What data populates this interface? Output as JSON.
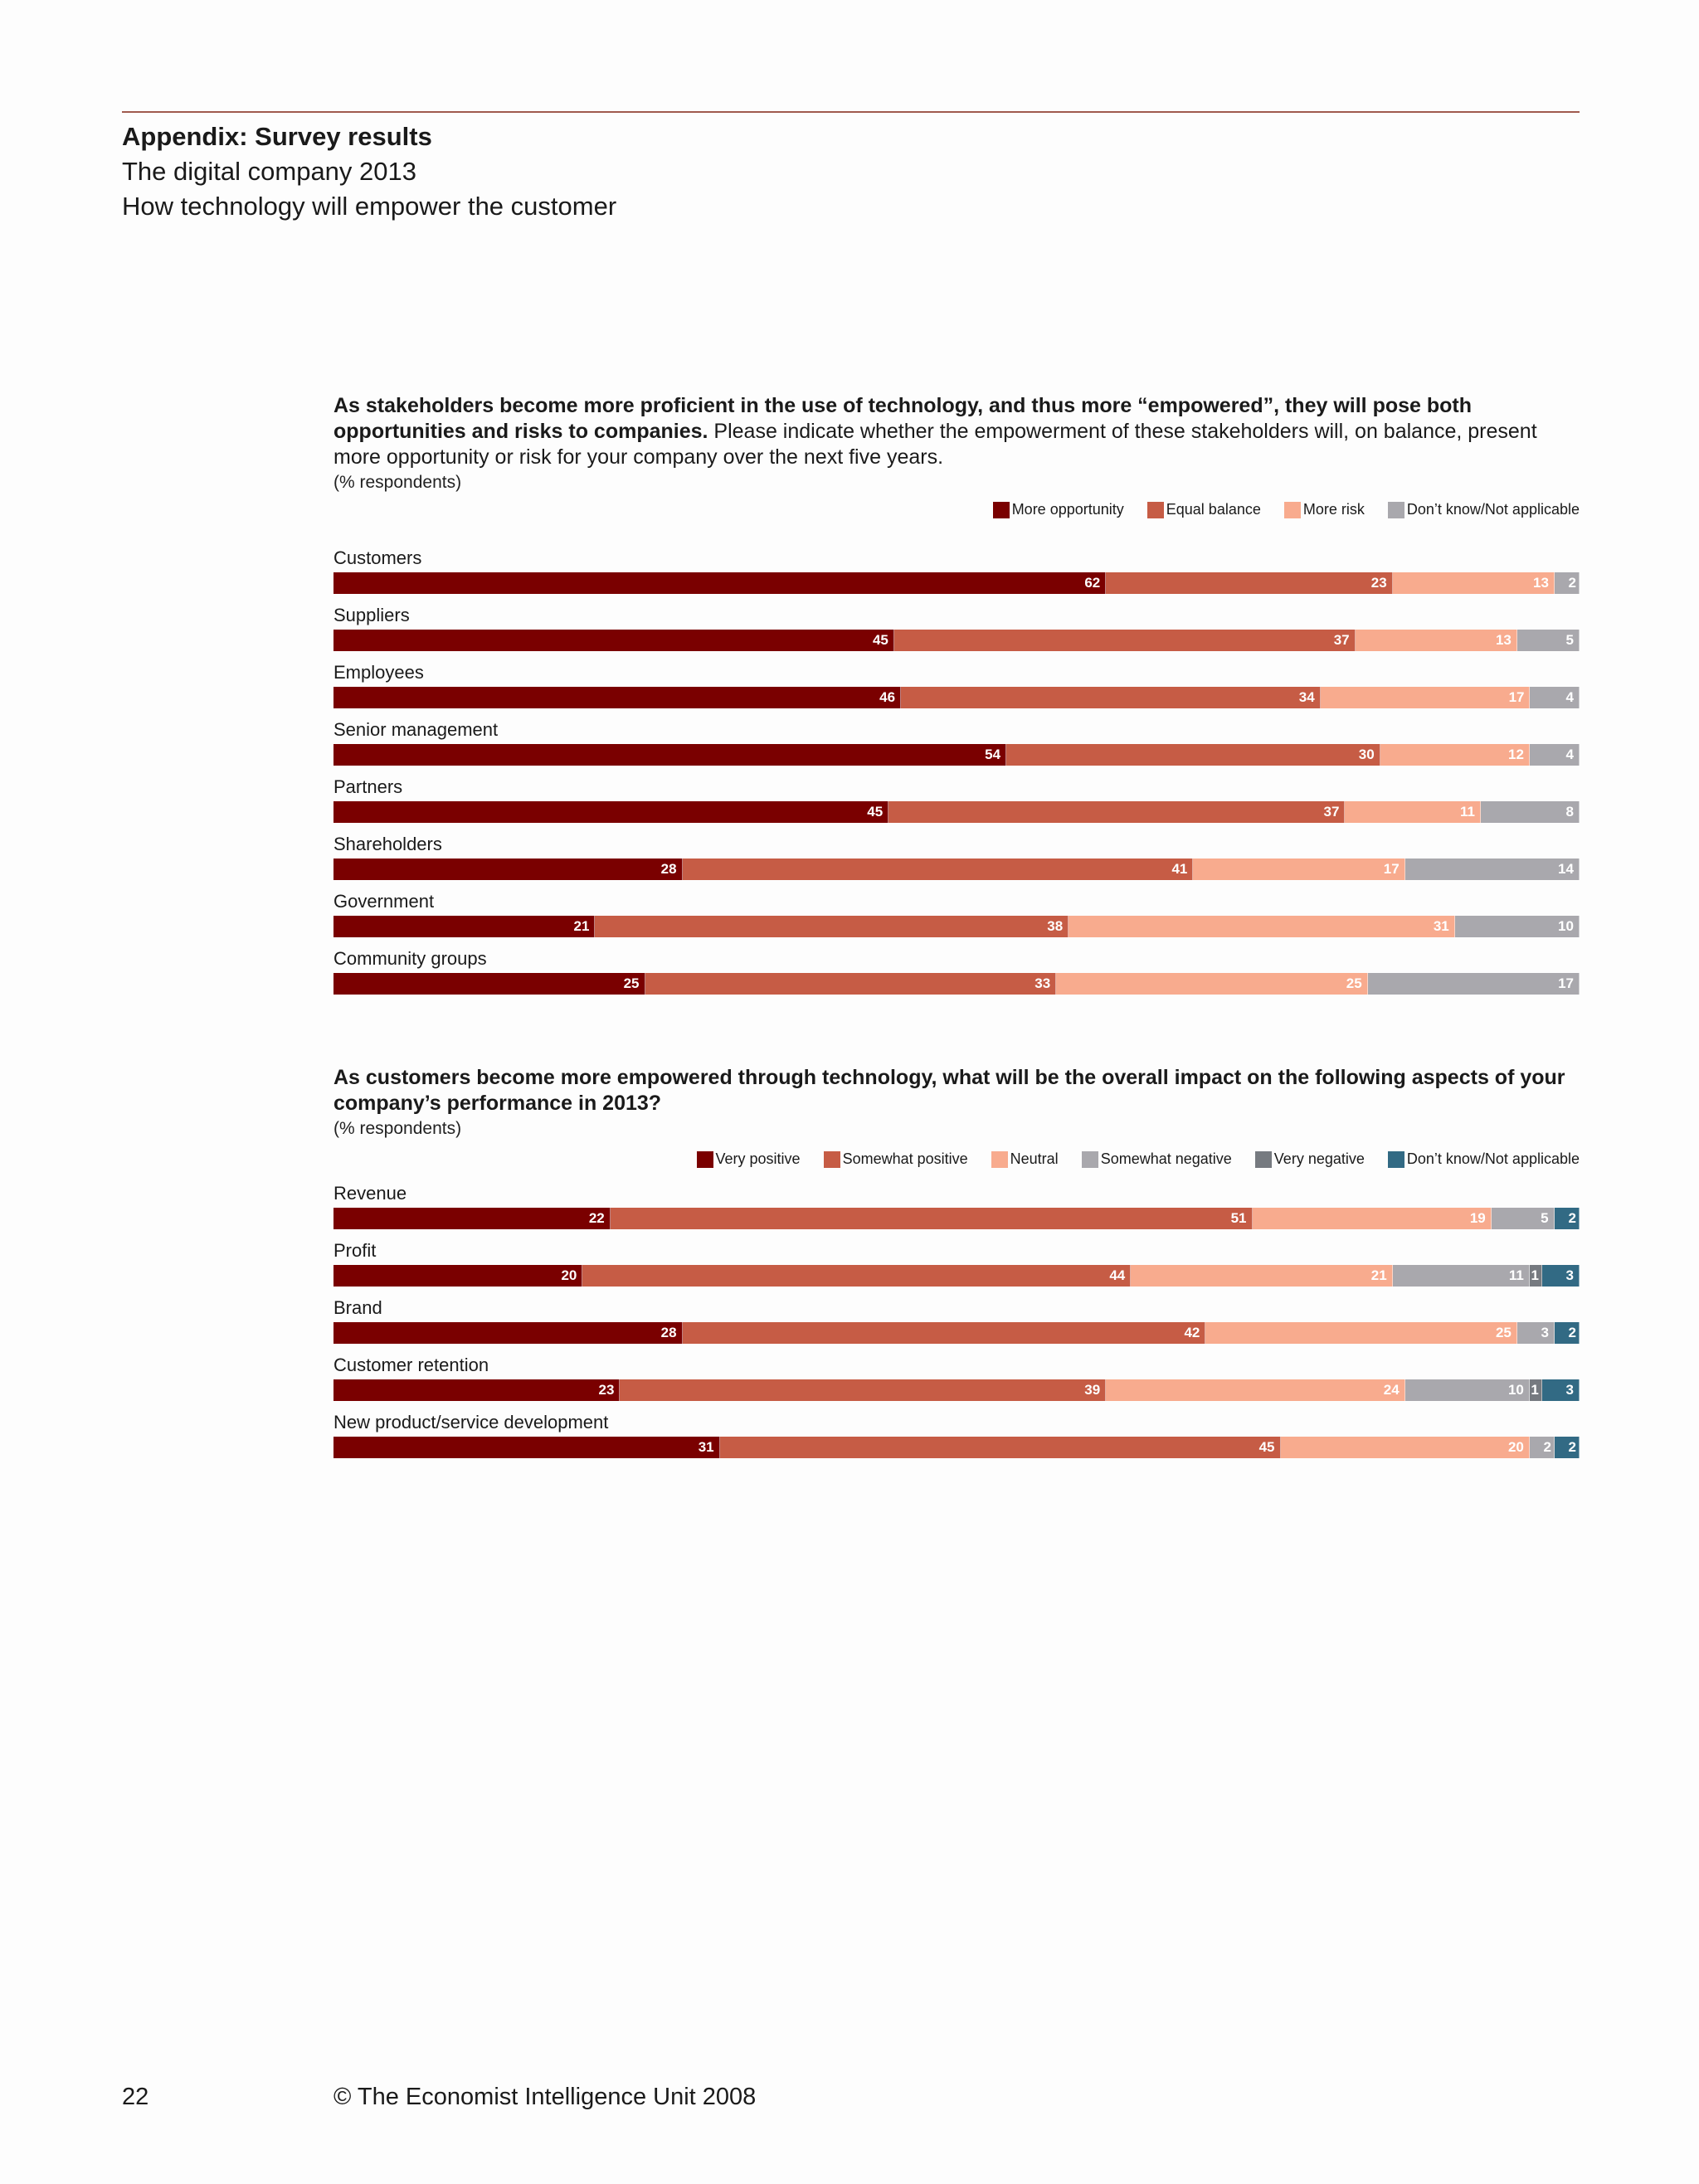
{
  "header": {
    "section_title": "Appendix: Survey results",
    "report_title": "The digital company 2013",
    "report_subtitle": "How technology will empower the customer"
  },
  "footer": {
    "page_number": "22",
    "copyright": "© The Economist Intelligence Unit 2008"
  },
  "chart_data": [
    {
      "type": "bar",
      "orientation": "horizontal-stacked-100",
      "question_bold": "As stakeholders become more proficient in the use of technology, and thus more “empowered”, they will pose both opportunities and risks to companies.",
      "question_rest": " Please indicate whether the empowerment of these stakeholders will, on balance, present more opportunity or risk for your company over the next five years.",
      "unit": "(% respondents)",
      "legend_position": "top-right",
      "categories": [
        "Customers",
        "Suppliers",
        "Employees",
        "Senior management",
        "Partners",
        "Shareholders",
        "Government",
        "Community groups"
      ],
      "series": [
        {
          "name": "More opportunity",
          "color": "#7a0000",
          "values": [
            62,
            45,
            46,
            54,
            45,
            28,
            21,
            25
          ]
        },
        {
          "name": "Equal balance",
          "color": "#c65c45",
          "values": [
            23,
            37,
            34,
            30,
            37,
            41,
            38,
            33
          ]
        },
        {
          "name": "More risk",
          "color": "#f8ab8e",
          "values": [
            13,
            13,
            17,
            12,
            11,
            17,
            31,
            25
          ]
        },
        {
          "name": "Don’t know/Not applicable",
          "color": "#a9a8ad",
          "values": [
            2,
            5,
            4,
            4,
            8,
            14,
            10,
            17
          ]
        }
      ]
    },
    {
      "type": "bar",
      "orientation": "horizontal-stacked-100",
      "question_bold": "As customers become more empowered through technology, what will be the overall impact on the following aspects of your company’s performance in 2013?",
      "question_rest": "",
      "unit": "(% respondents)",
      "legend_position": "top-right",
      "categories": [
        "Revenue",
        "Profit",
        "Brand",
        "Customer retention",
        "New product/service development"
      ],
      "series": [
        {
          "name": "Very positive",
          "color": "#7a0000",
          "values": [
            22,
            20,
            28,
            23,
            31
          ]
        },
        {
          "name": "Somewhat positive",
          "color": "#c65c45",
          "values": [
            51,
            44,
            42,
            39,
            45
          ]
        },
        {
          "name": "Neutral",
          "color": "#f8ab8e",
          "values": [
            19,
            21,
            25,
            24,
            20
          ]
        },
        {
          "name": "Somewhat negative",
          "color": "#a9a8ad",
          "values": [
            5,
            11,
            3,
            10,
            2
          ]
        },
        {
          "name": "Very negative",
          "color": "#767a80",
          "values": [
            0,
            1,
            0,
            1,
            0
          ]
        },
        {
          "name": "Don’t know/Not applicable",
          "color": "#326a84",
          "values": [
            2,
            3,
            2,
            3,
            2
          ]
        }
      ]
    }
  ]
}
